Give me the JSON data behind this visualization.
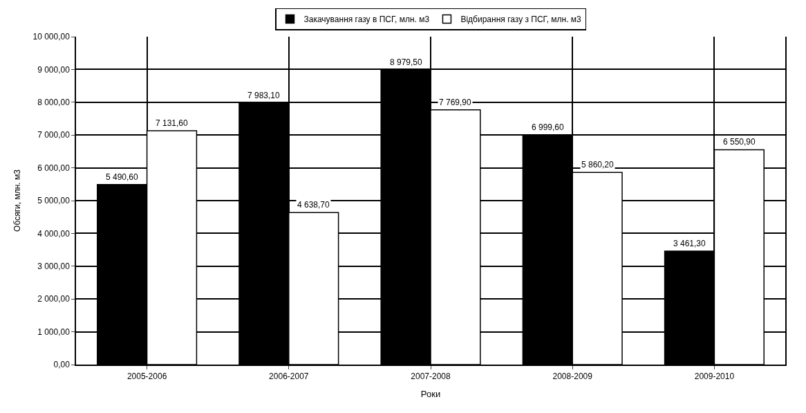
{
  "chart_data": {
    "type": "bar",
    "xlabel": "Роки",
    "ylabel": "Обсяги, млн. м3",
    "categories": [
      "2005-2006",
      "2006-2007",
      "2007-2008",
      "2008-2009",
      "2009-2010"
    ],
    "series": [
      {
        "name": "Закачування газу в ПСГ, млн. м3",
        "color": "#000000",
        "values": [
          5490.6,
          7983.1,
          8979.5,
          6999.6,
          3461.3
        ],
        "value_labels": [
          "5 490,60",
          "7 983,10",
          "8 979,50",
          "6 999,60",
          "3 461,30"
        ]
      },
      {
        "name": "Відбирання газу з ПСГ, млн. м3",
        "color": "#ffffff",
        "values": [
          7131.6,
          4638.7,
          7769.9,
          5860.2,
          6550.9
        ],
        "value_labels": [
          "7 131,60",
          "4 638,70",
          "7 769,90",
          "5 860,20",
          "6 550,90"
        ]
      }
    ],
    "ylim": [
      0,
      10000
    ],
    "yticks": [
      {
        "value": 0,
        "label": "0,00"
      },
      {
        "value": 1000,
        "label": "1 000,00"
      },
      {
        "value": 2000,
        "label": "2 000,00"
      },
      {
        "value": 3000,
        "label": "3 000,00"
      },
      {
        "value": 4000,
        "label": "4 000,00"
      },
      {
        "value": 5000,
        "label": "5 000,00"
      },
      {
        "value": 6000,
        "label": "6 000,00"
      },
      {
        "value": 7000,
        "label": "7 000,00"
      },
      {
        "value": 8000,
        "label": "8 000,00"
      },
      {
        "value": 9000,
        "label": "9 000,00"
      },
      {
        "value": 10000,
        "label": "10 000,00"
      }
    ],
    "grid": true,
    "legend": "top"
  }
}
